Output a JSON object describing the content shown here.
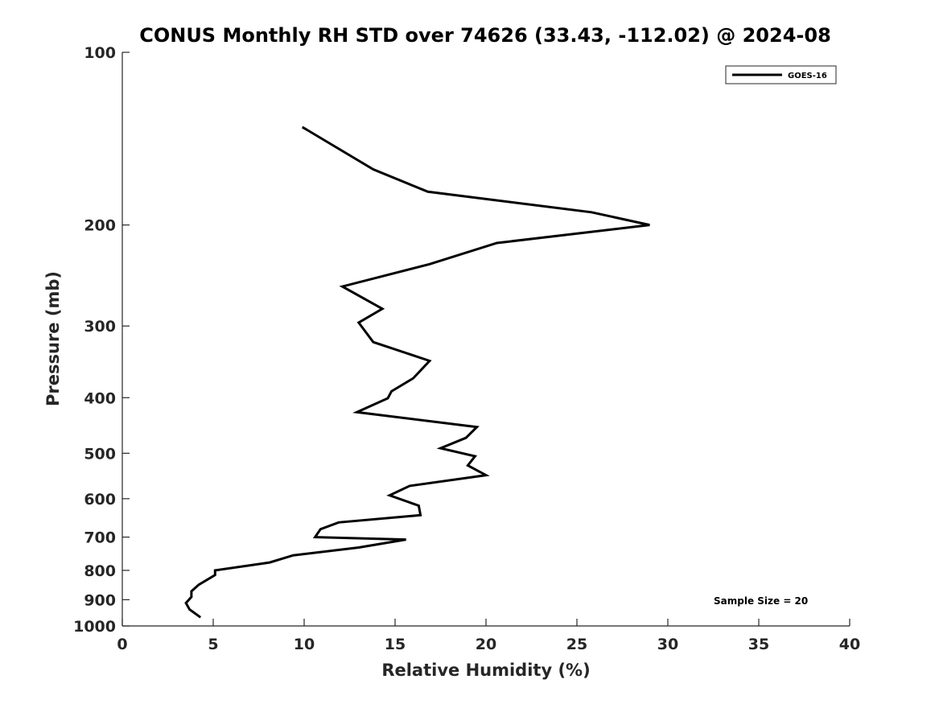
{
  "chart_data": {
    "type": "line",
    "title": "CONUS Monthly RH STD over 74626 (33.43, -112.02) @ 2024-08",
    "xlabel": "Relative Humidity (%)",
    "ylabel": "Pressure (mb)",
    "xlim": [
      0,
      40
    ],
    "ylim": [
      100,
      1000
    ],
    "y_scale": "log",
    "y_reversed": true,
    "x_ticks": [
      0,
      5,
      10,
      15,
      20,
      25,
      30,
      35,
      40
    ],
    "y_ticks": [
      100,
      200,
      300,
      400,
      500,
      600,
      700,
      800,
      900,
      1000
    ],
    "grid": false,
    "legend": {
      "position": "top-right",
      "entries": [
        "GOES-16"
      ]
    },
    "annotation": "Sample Size = 20",
    "series": [
      {
        "name": "GOES-16",
        "color": "#000000",
        "x": [
          9.9,
          13.8,
          16.8,
          25.8,
          29.0,
          20.6,
          16.9,
          12.1,
          14.3,
          13.0,
          13.8,
          16.9,
          16.0,
          14.8,
          14.6,
          12.9,
          19.5,
          18.9,
          17.5,
          19.4,
          19.0,
          20.0,
          15.8,
          14.7,
          16.3,
          16.4,
          11.9,
          10.9,
          10.6,
          15.6,
          13.0,
          9.4,
          8.1,
          5.1,
          5.1,
          4.2,
          3.8,
          3.8,
          3.5,
          3.7,
          4.3
        ],
        "y": [
          135,
          160,
          175,
          190,
          200,
          215,
          234,
          256,
          280,
          296,
          320,
          345,
          370,
          390,
          401,
          424,
          450,
          470,
          490,
          506,
          525,
          546,
          570,
          592,
          617,
          641,
          660,
          678,
          700,
          707,
          730,
          753,
          775,
          800,
          815,
          848,
          870,
          890,
          912,
          936,
          966
        ]
      }
    ]
  }
}
